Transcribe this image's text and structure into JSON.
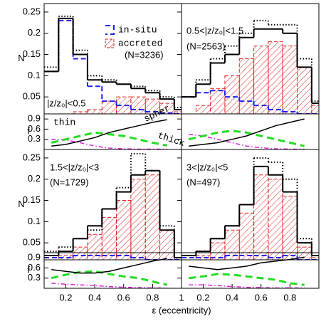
{
  "chart_data": [
    {
      "type": "histogram",
      "ylabel": "N",
      "bins": [
        0.05,
        0.15,
        0.25,
        0.35,
        0.45,
        0.55,
        0.65,
        0.75,
        0.85,
        0.95,
        1.0
      ],
      "xlim": [
        0.05,
        1.0
      ],
      "ylim": [
        0.01,
        0.27
      ],
      "yticks": [
        0.05,
        0.1,
        0.15,
        0.2,
        0.25
      ],
      "labels": [
        "|z/z₀|<0.5",
        "(N=3236)"
      ],
      "series": [
        {
          "name": "accreted",
          "color": "#dd2222",
          "style": "hatched",
          "values": [
            0.01,
            0.01,
            0.015,
            0.02,
            0.04,
            0.05,
            0.05,
            0.045,
            0.035,
            0.015
          ]
        },
        {
          "name": "in-situ",
          "color": "#2222ee",
          "style": "dashed",
          "values": [
            0.11,
            0.23,
            0.14,
            0.075,
            0.04,
            0.03,
            0.02,
            0.015,
            0.012,
            0.01
          ]
        },
        {
          "color": "#000000",
          "style": "dotted",
          "values": [
            0.12,
            0.24,
            0.16,
            0.1,
            0.09,
            0.08,
            0.075,
            0.065,
            0.05,
            0.025
          ]
        },
        {
          "color": "#000000",
          "style": "solid",
          "values": [
            0.11,
            0.235,
            0.15,
            0.09,
            0.085,
            0.08,
            0.07,
            0.06,
            0.045,
            0.02
          ]
        }
      ]
    },
    {
      "type": "line",
      "ylabel": "f",
      "x": [
        0.1,
        0.2,
        0.3,
        0.4,
        0.5,
        0.6,
        0.7,
        0.8,
        0.9
      ],
      "xlim": [
        0.05,
        1.0
      ],
      "ylim": [
        0,
        1.05
      ],
      "yticks": [
        0.3,
        0.6,
        0.9
      ],
      "series": [
        {
          "name": "thin",
          "color": "#dd22dd",
          "style": "dashdot",
          "values": [
            0.3,
            0.28,
            0.2,
            0.1,
            0.04,
            0.02,
            0.01,
            0.01,
            0.01
          ]
        },
        {
          "name": "thick",
          "color": "#22dd22",
          "style": "dashed",
          "values": [
            0.2,
            0.3,
            0.4,
            0.5,
            0.45,
            0.4,
            0.3,
            0.2,
            0.12
          ]
        },
        {
          "name": "spher",
          "color": "#000000",
          "style": "solid",
          "values": [
            0.1,
            0.15,
            0.25,
            0.35,
            0.5,
            0.6,
            0.7,
            0.8,
            0.88
          ]
        }
      ]
    },
    {
      "type": "histogram",
      "bins": [
        0.05,
        0.15,
        0.25,
        0.35,
        0.45,
        0.55,
        0.65,
        0.75,
        0.85,
        0.95,
        1.0
      ],
      "xlim": [
        0.05,
        1.0
      ],
      "ylim": [
        0.01,
        0.27
      ],
      "labels": [
        "0.5<|z/z₀|<1.5",
        "(N=2563)"
      ],
      "series": [
        {
          "color": "#dd2222",
          "style": "hatched",
          "values": [
            0.01,
            0.03,
            0.07,
            0.1,
            0.14,
            0.17,
            0.18,
            0.17,
            0.12,
            0.03
          ]
        },
        {
          "color": "#2222ee",
          "style": "dashed",
          "values": [
            0.05,
            0.06,
            0.065,
            0.05,
            0.04,
            0.03,
            0.02,
            0.015,
            0.01,
            0.01
          ]
        },
        {
          "color": "#000000",
          "style": "dotted",
          "values": [
            0.05,
            0.09,
            0.14,
            0.17,
            0.2,
            0.23,
            0.22,
            0.22,
            0.14,
            0.04
          ]
        },
        {
          "color": "#000000",
          "style": "solid",
          "values": [
            0.05,
            0.08,
            0.13,
            0.15,
            0.19,
            0.21,
            0.21,
            0.2,
            0.12,
            0.035
          ]
        }
      ]
    },
    {
      "type": "line",
      "x": [
        0.1,
        0.2,
        0.3,
        0.4,
        0.5,
        0.6,
        0.7,
        0.8,
        0.9
      ],
      "xlim": [
        0.05,
        1.0
      ],
      "ylim": [
        0,
        1.05
      ],
      "series": [
        {
          "color": "#dd22dd",
          "style": "dashdot",
          "values": [
            0.45,
            0.4,
            0.3,
            0.2,
            0.1,
            0.05,
            0.02,
            0.01,
            0.01
          ]
        },
        {
          "color": "#22dd22",
          "style": "dashed",
          "values": [
            0.3,
            0.4,
            0.5,
            0.55,
            0.5,
            0.4,
            0.3,
            0.2,
            0.1
          ]
        },
        {
          "color": "#000000",
          "style": "solid",
          "values": [
            0.1,
            0.15,
            0.2,
            0.3,
            0.4,
            0.55,
            0.7,
            0.8,
            0.9
          ]
        }
      ]
    },
    {
      "type": "histogram",
      "ylabel": "N",
      "bins": [
        0.05,
        0.15,
        0.25,
        0.35,
        0.45,
        0.55,
        0.65,
        0.75,
        0.85,
        0.95,
        1.0
      ],
      "xlim": [
        0.05,
        1.0
      ],
      "ylim": [
        0.01,
        0.27
      ],
      "yticks": [
        0.05,
        0.1,
        0.15,
        0.2,
        0.25
      ],
      "labels": [
        "1.5<|z/z₀|<3",
        "(N=1729)"
      ],
      "series": [
        {
          "color": "#dd2222",
          "style": "hatched",
          "values": [
            0.01,
            0.02,
            0.04,
            0.07,
            0.11,
            0.15,
            0.2,
            0.21,
            0.08,
            0.015
          ]
        },
        {
          "color": "#2222ee",
          "style": "dashed",
          "values": [
            0.015,
            0.015,
            0.02,
            0.02,
            0.02,
            0.02,
            0.015,
            0.01,
            0.01,
            0.01
          ]
        },
        {
          "color": "#000000",
          "style": "dotted",
          "values": [
            0.03,
            0.04,
            0.06,
            0.08,
            0.13,
            0.18,
            0.26,
            0.22,
            0.09,
            0.015
          ]
        },
        {
          "color": "#000000",
          "style": "solid",
          "values": [
            0.02,
            0.03,
            0.06,
            0.09,
            0.13,
            0.17,
            0.21,
            0.22,
            0.08,
            0.015
          ]
        }
      ]
    },
    {
      "type": "line",
      "ylabel": "f",
      "xlabel": "ε (eccentricity)",
      "x": [
        0.1,
        0.2,
        0.3,
        0.4,
        0.5,
        0.6,
        0.7,
        0.8,
        0.9
      ],
      "xlim": [
        0.05,
        1.0
      ],
      "ylim": [
        0,
        1.05
      ],
      "yticks": [
        0.3,
        0.6,
        0.9
      ],
      "xticks": [
        0.2,
        0.4,
        0.6,
        0.8,
        1
      ],
      "series": [
        {
          "color": "#dd22dd",
          "style": "dashdot",
          "values": [
            0.15,
            0.12,
            0.1,
            0.08,
            0.05,
            0.03,
            0.02,
            0.01,
            0.01
          ]
        },
        {
          "color": "#22dd22",
          "style": "dashed",
          "values": [
            0.3,
            0.4,
            0.48,
            0.5,
            0.42,
            0.35,
            0.3,
            0.2,
            0.1
          ]
        },
        {
          "color": "#000000",
          "style": "solid",
          "values": [
            0.55,
            0.5,
            0.45,
            0.45,
            0.5,
            0.6,
            0.7,
            0.8,
            0.88
          ]
        }
      ]
    },
    {
      "type": "histogram",
      "bins": [
        0.05,
        0.15,
        0.25,
        0.35,
        0.45,
        0.55,
        0.65,
        0.75,
        0.85,
        0.95,
        1.0
      ],
      "xlim": [
        0.05,
        1.0
      ],
      "ylim": [
        0.01,
        0.27
      ],
      "labels": [
        "3<|z/z₀|<5",
        "(N=497)"
      ],
      "series": [
        {
          "color": "#dd2222",
          "style": "hatched",
          "values": [
            0.01,
            0.02,
            0.05,
            0.08,
            0.12,
            0.21,
            0.2,
            0.16,
            0.04,
            0.015
          ]
        },
        {
          "color": "#2222ee",
          "style": "dashed",
          "values": [
            0.015,
            0.015,
            0.015,
            0.02,
            0.02,
            0.02,
            0.015,
            0.02,
            0.01,
            0.01
          ]
        },
        {
          "color": "#000000",
          "style": "dotted",
          "values": [
            0.02,
            0.03,
            0.06,
            0.09,
            0.14,
            0.25,
            0.24,
            0.2,
            0.06,
            0.02
          ]
        },
        {
          "color": "#000000",
          "style": "solid",
          "values": [
            0.02,
            0.03,
            0.06,
            0.09,
            0.14,
            0.23,
            0.21,
            0.17,
            0.05,
            0.02
          ]
        }
      ]
    },
    {
      "type": "line",
      "x": [
        0.1,
        0.2,
        0.3,
        0.4,
        0.5,
        0.6,
        0.7,
        0.8,
        0.9
      ],
      "xlim": [
        0.05,
        1.0
      ],
      "ylim": [
        0,
        1.05
      ],
      "xticks": [
        0.2,
        0.4,
        0.6,
        0.8
      ],
      "series": [
        {
          "color": "#dd22dd",
          "style": "dashdot",
          "values": [
            0.1,
            0.1,
            0.08,
            0.05,
            0.03,
            0.02,
            0.01,
            0.01,
            0.01
          ]
        },
        {
          "color": "#22dd22",
          "style": "dashed",
          "values": [
            0.3,
            0.35,
            0.42,
            0.4,
            0.35,
            0.3,
            0.25,
            0.15,
            0.1
          ]
        },
        {
          "color": "#000000",
          "style": "solid",
          "values": [
            0.65,
            0.6,
            0.55,
            0.6,
            0.65,
            0.75,
            0.8,
            0.85,
            0.92
          ]
        }
      ]
    }
  ]
}
